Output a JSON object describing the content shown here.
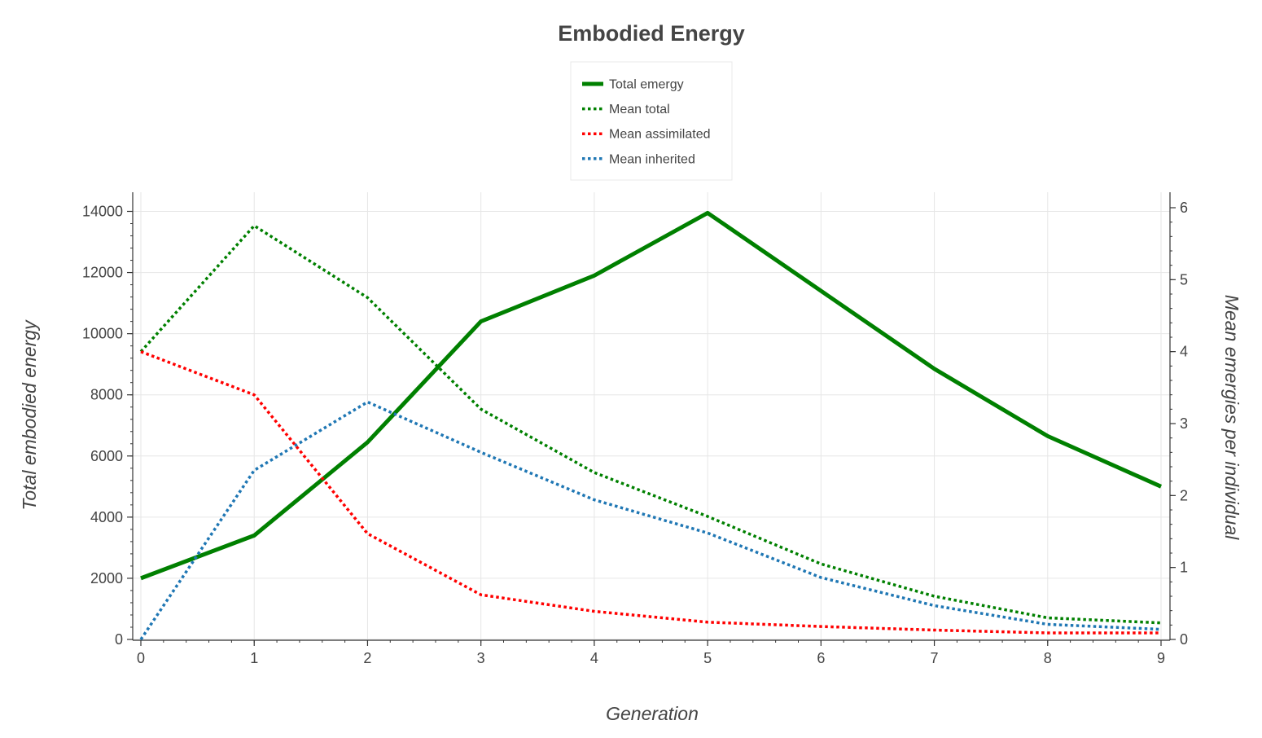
{
  "chart_data": {
    "type": "line",
    "title": "Embodied Energy",
    "xlabel": "Generation",
    "ylabel": "Total embodied energy",
    "ylabel_right": "Mean emergies per individual",
    "x": [
      0,
      1,
      2,
      3,
      4,
      5,
      6,
      7,
      8,
      9
    ],
    "xlim": [
      0,
      9
    ],
    "ylim": [
      0,
      14000
    ],
    "ylim_right": [
      0,
      6
    ],
    "x_ticks": [
      "0",
      "1",
      "2",
      "3",
      "4",
      "5",
      "6",
      "7",
      "8",
      "9"
    ],
    "y_ticks": [
      "0",
      "2000",
      "4000",
      "6000",
      "8000",
      "10000",
      "12000",
      "14000"
    ],
    "y_ticks_right": [
      "0",
      "1",
      "2",
      "3",
      "4",
      "5",
      "6"
    ],
    "grid": true,
    "legend_position": "top-center",
    "series": [
      {
        "name": "Total emergy",
        "axis": "left",
        "style": "solid",
        "color": "#008000",
        "values": [
          2000,
          3400,
          6450,
          10400,
          11900,
          13950,
          11400,
          8850,
          6650,
          5000
        ]
      },
      {
        "name": "Mean total",
        "axis": "right",
        "style": "dotted",
        "color": "#008000",
        "values": [
          4.0,
          5.75,
          4.75,
          3.2,
          2.32,
          1.71,
          1.05,
          0.6,
          0.3,
          0.23
        ]
      },
      {
        "name": "Mean assimilated",
        "axis": "right",
        "style": "dotted",
        "color": "#ff0000",
        "values": [
          4.0,
          3.4,
          1.47,
          0.62,
          0.39,
          0.24,
          0.18,
          0.13,
          0.09,
          0.09
        ]
      },
      {
        "name": "Mean inherited",
        "axis": "right",
        "style": "dotted",
        "color": "#1f77b4",
        "values": [
          0.0,
          2.35,
          3.3,
          2.6,
          1.94,
          1.48,
          0.86,
          0.47,
          0.21,
          0.14
        ]
      }
    ]
  }
}
